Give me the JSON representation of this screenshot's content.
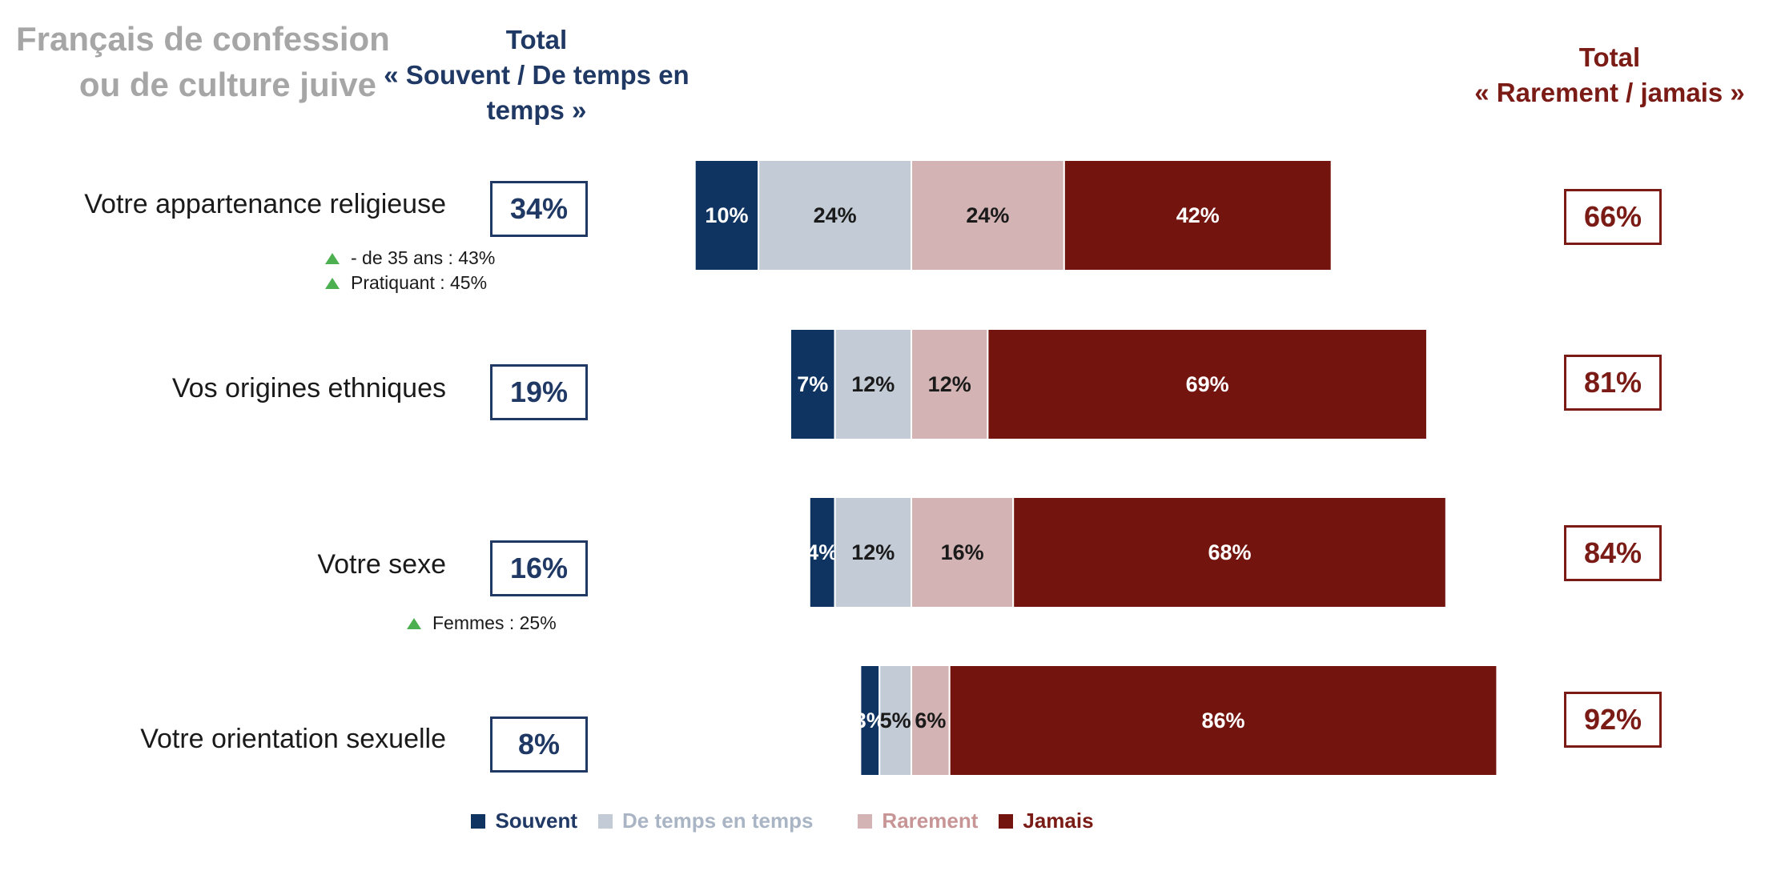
{
  "title_lines": [
    "Français de confession",
    "ou de culture juive"
  ],
  "total_left_header": [
    "Total",
    "« Souvent / De temps en",
    "temps »"
  ],
  "total_right_header": [
    "Total",
    "« Rarement /  jamais »"
  ],
  "colors": {
    "title": "#a6a6a6",
    "navy": "#1f3864",
    "dark_red": "#7b1b16",
    "souvent": "#0f3462",
    "de_temps_en_temps": "#c3cbd6",
    "rarement": "#d3b3b3",
    "jamais": "#74140f",
    "triangle": "#4caf50"
  },
  "rows": [
    {
      "label": "Votre appartenance religieuse",
      "total_left": "34%",
      "total_right": "66%",
      "notes": [
        "- de 35 ans : 43%",
        "Pratiquant : 45%"
      ]
    },
    {
      "label": "Vos origines ethniques",
      "total_left": "19%",
      "total_right": "81%",
      "notes": []
    },
    {
      "label": "Votre sexe",
      "total_left": "16%",
      "total_right": "84%",
      "notes": [
        "Femmes : 25%"
      ]
    },
    {
      "label": "Votre orientation sexuelle",
      "total_left": "8%",
      "total_right": "92%",
      "notes": []
    }
  ],
  "chart_data": {
    "type": "bar",
    "orientation": "horizontal",
    "stacked": true,
    "diverging": true,
    "categories": [
      "Votre appartenance religieuse",
      "Vos origines ethniques",
      "Votre sexe",
      "Votre orientation sexuelle"
    ],
    "series": [
      {
        "name": "Souvent",
        "values": [
          10,
          7,
          4,
          3
        ],
        "labels": [
          "10%",
          "7%",
          "4%",
          "3%"
        ]
      },
      {
        "name": "De temps en temps",
        "values": [
          24,
          12,
          12,
          5
        ],
        "labels": [
          "24%",
          "12%",
          "12%",
          "5%"
        ]
      },
      {
        "name": "Rarement",
        "values": [
          24,
          12,
          16,
          6
        ],
        "labels": [
          "24%",
          "12%",
          "16%",
          "6%"
        ]
      },
      {
        "name": "Jamais",
        "values": [
          42,
          69,
          68,
          86
        ],
        "labels": [
          "42%",
          "69%",
          "68%",
          "86%"
        ]
      }
    ],
    "legend": [
      "Souvent",
      "De temps en temps",
      "Rarement",
      "Jamais"
    ],
    "legend_position": "bottom"
  }
}
